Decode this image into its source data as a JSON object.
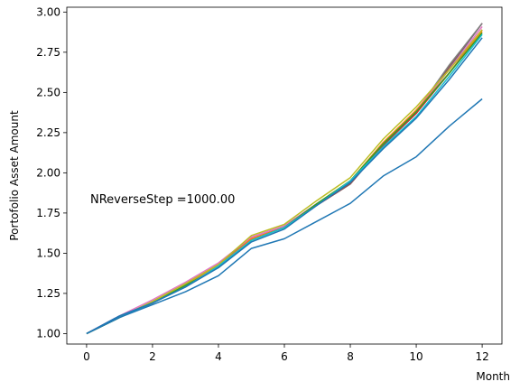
{
  "chart_data": {
    "type": "line",
    "title": "",
    "xlabel": "Month",
    "ylabel": "Portofolio Asset Amount",
    "annotation": "NReverseStep =1000.00",
    "xlim": [
      -0.6,
      12.6
    ],
    "ylim": [
      0.935,
      3.03
    ],
    "xticks": [
      0,
      2,
      4,
      6,
      8,
      10,
      12
    ],
    "xtick_labels": [
      "0",
      "2",
      "4",
      "6",
      "8",
      "10",
      "12"
    ],
    "yticks": [
      1.0,
      1.25,
      1.5,
      1.75,
      2.0,
      2.25,
      2.5,
      2.75,
      3.0
    ],
    "ytick_labels": [
      "1.00",
      "1.25",
      "1.50",
      "1.75",
      "2.00",
      "2.25",
      "2.50",
      "2.75",
      "3.00"
    ],
    "grid": false,
    "legend": "none",
    "x": [
      0,
      1,
      2,
      3,
      4,
      5,
      6,
      7,
      8,
      9,
      10,
      11,
      12
    ],
    "series": [
      {
        "color": "#9467bd",
        "values": [
          1.0,
          1.1,
          1.19,
          1.3,
          1.42,
          1.59,
          1.66,
          1.8,
          1.93,
          2.17,
          2.37,
          2.65,
          2.93
        ]
      },
      {
        "color": "#8c564b",
        "values": [
          1.0,
          1.1,
          1.19,
          1.3,
          1.42,
          1.59,
          1.66,
          1.8,
          1.93,
          2.17,
          2.37,
          2.66,
          2.93
        ]
      },
      {
        "color": "#7f7f7f",
        "values": [
          1.0,
          1.1,
          1.2,
          1.31,
          1.43,
          1.6,
          1.67,
          1.81,
          1.94,
          2.18,
          2.38,
          2.67,
          2.93
        ]
      },
      {
        "color": "#e377c2",
        "values": [
          1.0,
          1.11,
          1.21,
          1.32,
          1.44,
          1.6,
          1.67,
          1.81,
          1.94,
          2.18,
          2.39,
          2.64,
          2.91
        ]
      },
      {
        "color": "#d62728",
        "values": [
          1.0,
          1.1,
          1.19,
          1.3,
          1.42,
          1.59,
          1.66,
          1.81,
          1.94,
          2.18,
          2.37,
          2.62,
          2.89
        ]
      },
      {
        "color": "#ff7f0e",
        "values": [
          1.0,
          1.1,
          1.19,
          1.3,
          1.42,
          1.59,
          1.66,
          1.81,
          1.95,
          2.19,
          2.39,
          2.62,
          2.88
        ]
      },
      {
        "color": "#2ca02c",
        "values": [
          1.0,
          1.1,
          1.19,
          1.3,
          1.41,
          1.58,
          1.66,
          1.81,
          1.95,
          2.18,
          2.38,
          2.62,
          2.87
        ]
      },
      {
        "color": "#bcbd22",
        "values": [
          1.0,
          1.1,
          1.2,
          1.31,
          1.43,
          1.61,
          1.68,
          1.83,
          1.97,
          2.21,
          2.41,
          2.64,
          2.89
        ]
      },
      {
        "color": "#17becf",
        "values": [
          1.0,
          1.1,
          1.19,
          1.29,
          1.42,
          1.58,
          1.66,
          1.8,
          1.95,
          2.16,
          2.35,
          2.6,
          2.86
        ]
      },
      {
        "color": "#1f77b4",
        "values": [
          1.0,
          1.11,
          1.19,
          1.29,
          1.41,
          1.57,
          1.65,
          1.8,
          1.94,
          2.15,
          2.34,
          2.58,
          2.84
        ]
      },
      {
        "color": "#1f77b4",
        "values": [
          1.0,
          1.1,
          1.18,
          1.26,
          1.36,
          1.53,
          1.59,
          1.7,
          1.81,
          1.98,
          2.1,
          2.29,
          2.46
        ]
      }
    ]
  }
}
